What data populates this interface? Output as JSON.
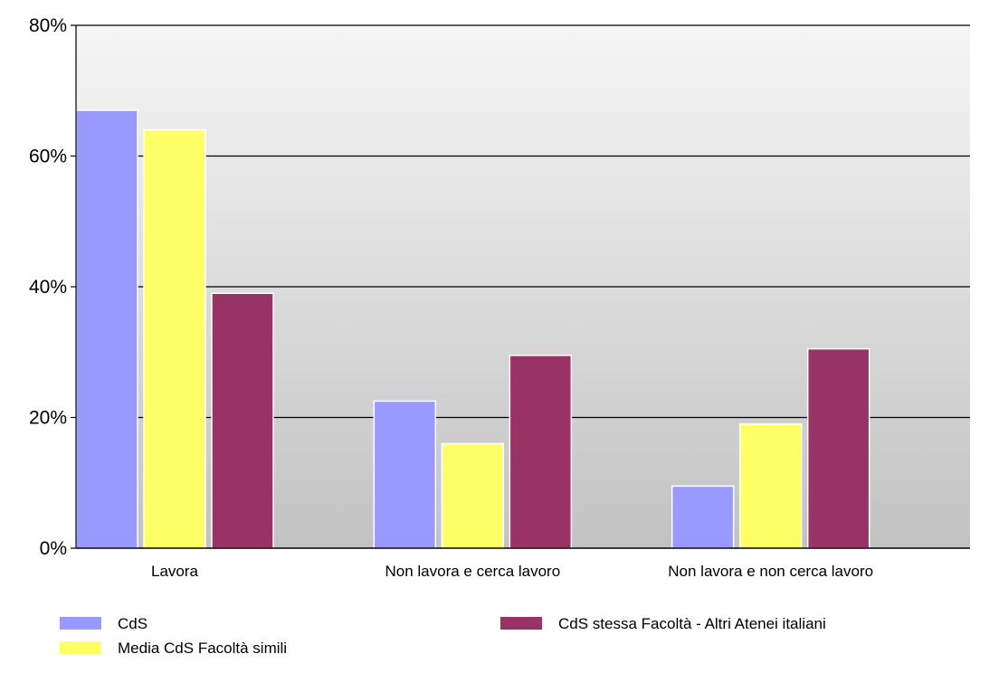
{
  "chart_data": {
    "type": "bar",
    "title": "",
    "xlabel": "",
    "ylabel": "",
    "categories": [
      "Lavora",
      "Non lavora e cerca lavoro",
      "Non lavora e non cerca lavoro"
    ],
    "series": [
      {
        "name": "CdS",
        "values": [
          67.0,
          22.5,
          9.5
        ],
        "color": "#9999ff"
      },
      {
        "name": "Media CdS Facoltà simili",
        "values": [
          64.0,
          16.0,
          19.0
        ],
        "color": "#ffff66"
      },
      {
        "name": "CdS stessa Facoltà - Altri Atenei italiani",
        "values": [
          39.0,
          29.5,
          30.5
        ],
        "color": "#993366"
      }
    ],
    "ylim": [
      0,
      80
    ],
    "yticks": [
      0,
      20,
      40,
      60,
      80
    ],
    "ytick_labels": [
      "0%",
      "20%",
      "40%",
      "60%",
      "80%"
    ],
    "grid": true,
    "background": "gradient light-to-dark gray",
    "legend_position": "bottom"
  }
}
